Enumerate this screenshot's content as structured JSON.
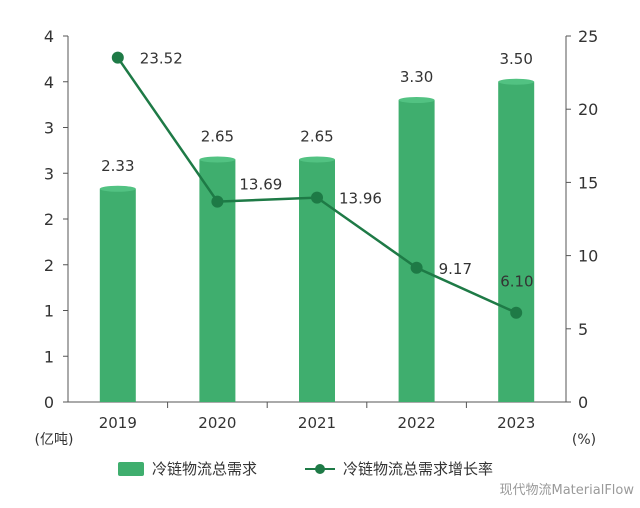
{
  "chart_data": {
    "type": "bar",
    "categories": [
      "2019",
      "2020",
      "2021",
      "2022",
      "2023"
    ],
    "series": [
      {
        "name": "冷链物流总需求",
        "type": "bar",
        "axis": "left",
        "values": [
          2.33,
          2.65,
          2.65,
          3.3,
          3.5
        ],
        "labels": [
          "2.33",
          "2.65",
          "2.65",
          "3.30",
          "3.50"
        ],
        "color": "#3fae6e"
      },
      {
        "name": "冷链物流总需求增长率",
        "type": "line",
        "axis": "right",
        "values": [
          23.52,
          13.69,
          13.96,
          9.17,
          6.1
        ],
        "labels": [
          "23.52",
          "13.69",
          "13.96",
          "9.17",
          "6.10"
        ],
        "color": "#1e7a46"
      }
    ],
    "y_left": {
      "unit_label": "(亿吨)",
      "ticks": [
        {
          "value": 0,
          "label": "0"
        },
        {
          "value": 0.5,
          "label": "1"
        },
        {
          "value": 1.0,
          "label": "1"
        },
        {
          "value": 1.5,
          "label": "2"
        },
        {
          "value": 2.0,
          "label": "2"
        },
        {
          "value": 2.5,
          "label": "3"
        },
        {
          "value": 3.0,
          "label": "3"
        },
        {
          "value": 3.5,
          "label": "4"
        },
        {
          "value": 4.0,
          "label": "4"
        }
      ],
      "range": [
        0,
        4.0
      ]
    },
    "y_right": {
      "unit_label": "(%)",
      "ticks": [
        "0",
        "5",
        "10",
        "15",
        "20",
        "25"
      ],
      "range": [
        0,
        25
      ]
    },
    "grid": false
  },
  "watermark": "现代物流MaterialFlow"
}
